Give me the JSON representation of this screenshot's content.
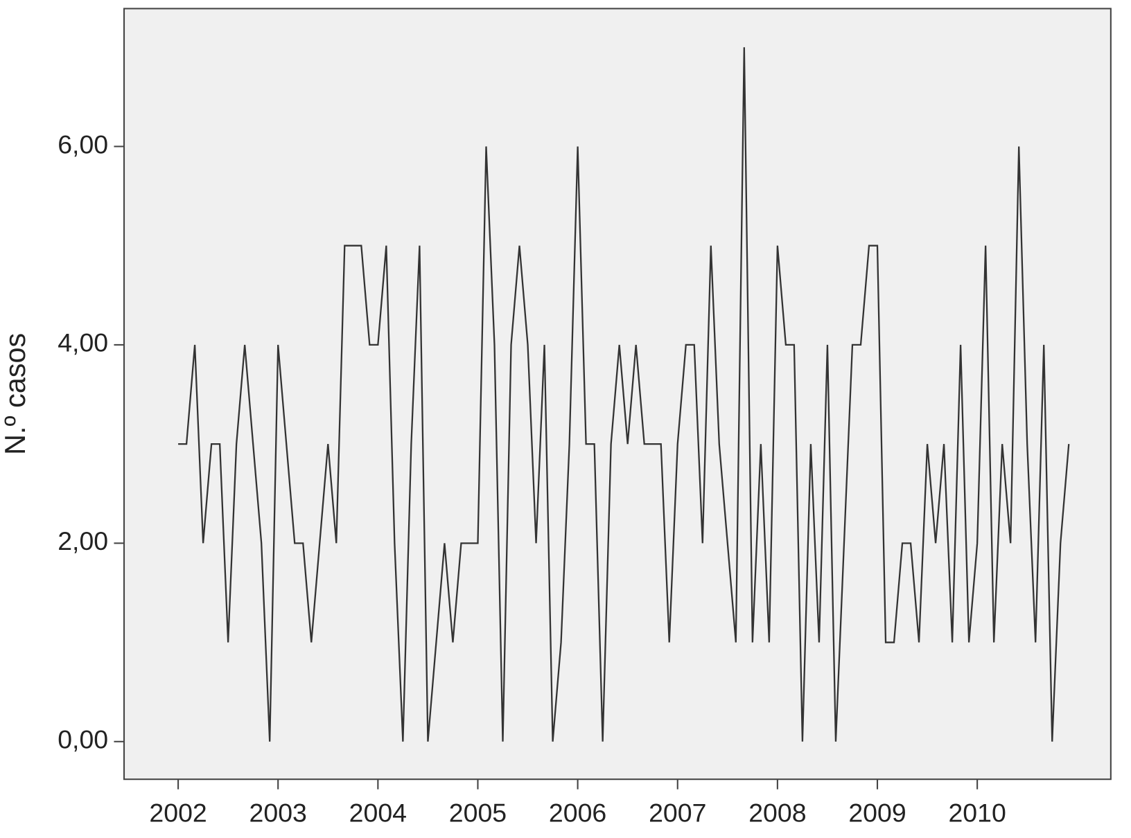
{
  "chart_data": {
    "type": "line",
    "y_label": "N.º casos",
    "categories": [
      "2002",
      null,
      null,
      null,
      null,
      null,
      null,
      null,
      null,
      null,
      null,
      null,
      "2003",
      null,
      null,
      null,
      null,
      null,
      null,
      null,
      null,
      null,
      null,
      null,
      "2004",
      null,
      null,
      null,
      null,
      null,
      null,
      null,
      null,
      null,
      null,
      null,
      "2005",
      null,
      null,
      null,
      null,
      null,
      null,
      null,
      null,
      null,
      null,
      null,
      "2006",
      null,
      null,
      null,
      null,
      null,
      null,
      null,
      null,
      null,
      null,
      null,
      "2007",
      null,
      null,
      null,
      null,
      null,
      null,
      null,
      null,
      null,
      null,
      null,
      "2008",
      null,
      null,
      null,
      null,
      null,
      null,
      null,
      null,
      null,
      null,
      null,
      "2009",
      null,
      null,
      null,
      null,
      null,
      null,
      null,
      null,
      null,
      null,
      null,
      "2010",
      null,
      null,
      null,
      null,
      null,
      null,
      null,
      null,
      null,
      null,
      null
    ],
    "values": [
      3,
      3,
      4,
      2,
      3,
      3,
      1,
      3,
      4,
      3,
      2,
      0,
      4,
      3,
      2,
      2,
      1,
      2,
      3,
      2,
      5,
      5,
      5,
      4,
      4,
      5,
      2,
      0,
      3,
      5,
      0,
      1,
      2,
      1,
      2,
      2,
      2,
      6,
      4,
      0,
      4,
      5,
      4,
      2,
      4,
      0,
      1,
      3,
      6,
      3,
      3,
      0,
      3,
      4,
      3,
      4,
      3,
      3,
      3,
      1,
      3,
      4,
      4,
      2,
      5,
      3,
      2,
      1,
      7,
      1,
      3,
      1,
      5,
      4,
      4,
      0,
      3,
      1,
      4,
      0,
      2,
      4,
      4,
      5,
      5,
      1,
      1,
      2,
      2,
      1,
      3,
      2,
      3,
      1,
      4,
      1,
      2,
      5,
      1,
      3,
      2,
      6,
      3,
      1,
      4,
      0,
      2,
      3
    ],
    "color": "#333333",
    "ylim": [
      -0.38,
      7.39
    ],
    "yticks": [
      {
        "value": 0,
        "label": "0,00"
      },
      {
        "value": 2,
        "label": "2,00"
      },
      {
        "value": 4,
        "label": "4,00"
      },
      {
        "value": 6,
        "label": "6,00"
      }
    ]
  }
}
